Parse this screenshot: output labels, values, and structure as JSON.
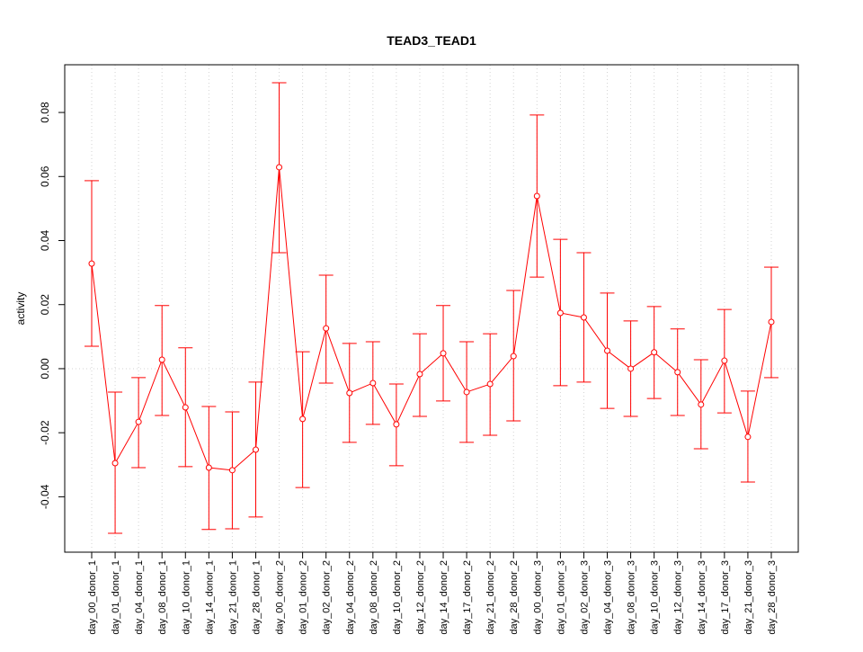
{
  "chart_data": {
    "type": "line",
    "title": "TEAD3_TEAD1",
    "xlabel": "",
    "ylabel": "activity",
    "ylim": [
      -0.0573,
      0.0949
    ],
    "yticks": [
      -0.04,
      -0.02,
      0.0,
      0.02,
      0.04,
      0.06,
      0.08
    ],
    "ytick_labels": [
      "-0.04",
      "-0.02",
      "0.00",
      "0.02",
      "0.04",
      "0.06",
      "0.08"
    ],
    "grid": true,
    "color": "#ff0000",
    "categories": [
      "day_00_donor_1",
      "day_01_donor_1",
      "day_04_donor_1",
      "day_08_donor_1",
      "day_10_donor_1",
      "day_14_donor_1",
      "day_21_donor_1",
      "day_28_donor_1",
      "day_00_donor_2",
      "day_01_donor_2",
      "day_02_donor_2",
      "day_04_donor_2",
      "day_08_donor_2",
      "day_10_donor_2",
      "day_12_donor_2",
      "day_14_donor_2",
      "day_17_donor_2",
      "day_21_donor_2",
      "day_28_donor_2",
      "day_00_donor_3",
      "day_01_donor_3",
      "day_02_donor_3",
      "day_04_donor_3",
      "day_08_donor_3",
      "day_10_donor_3",
      "day_12_donor_3",
      "day_14_donor_3",
      "day_17_donor_3",
      "day_21_donor_3",
      "day_28_donor_3"
    ],
    "values": [
      0.0328,
      -0.0295,
      -0.0166,
      0.0028,
      -0.0121,
      -0.0309,
      -0.0317,
      -0.0253,
      0.0629,
      -0.0157,
      0.0126,
      -0.0076,
      -0.0045,
      -0.0174,
      -0.0017,
      0.0048,
      -0.0073,
      -0.0048,
      0.0039,
      0.0539,
      0.0174,
      0.016,
      0.0056,
      0.0,
      0.0051,
      -0.0011,
      -0.0112,
      0.0025,
      -0.0213,
      0.0146
    ],
    "upper": [
      0.0587,
      -0.0073,
      -0.0028,
      0.0197,
      0.0065,
      -0.0118,
      -0.0135,
      -0.0042,
      0.0893,
      0.0053,
      0.0292,
      0.0079,
      0.0084,
      -0.0048,
      0.0109,
      0.0197,
      0.0084,
      0.0109,
      0.0244,
      0.0792,
      0.0404,
      0.0362,
      0.0236,
      0.0149,
      0.0194,
      0.0124,
      0.0028,
      0.0185,
      -0.007,
      0.0317
    ],
    "lower": [
      0.007,
      -0.0514,
      -0.0309,
      -0.0146,
      -0.0306,
      -0.0502,
      -0.05,
      -0.0463,
      0.0362,
      -0.0371,
      -0.0045,
      -0.023,
      -0.0174,
      -0.0303,
      -0.0149,
      -0.0101,
      -0.023,
      -0.0208,
      -0.0163,
      0.0286,
      -0.0053,
      -0.0042,
      -0.0124,
      -0.0149,
      -0.0093,
      -0.0146,
      -0.025,
      -0.0138,
      -0.0354,
      -0.0028
    ]
  }
}
